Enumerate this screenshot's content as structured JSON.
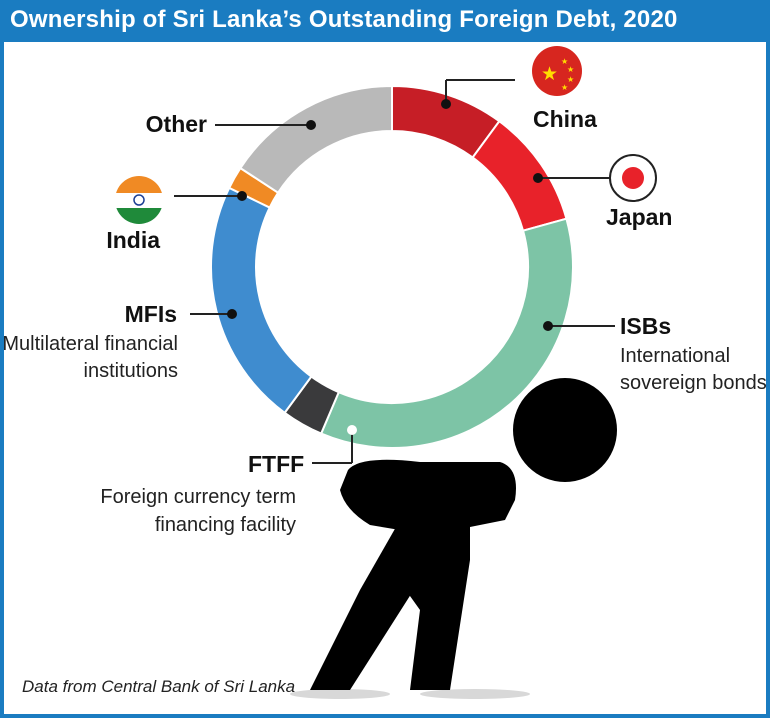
{
  "title": "Ownership of Sri Lanka’s Outstanding Foreign Debt, 2020",
  "source": "Data from Central Bank of Sri Lanka",
  "chart_data": {
    "type": "pie",
    "donut": true,
    "slices": [
      {
        "key": "china",
        "label": "China",
        "sublabel": [],
        "value": 10.1,
        "color": "#c61e26"
      },
      {
        "key": "japan",
        "label": "Japan",
        "sublabel": [],
        "value": 10.6,
        "color": "#e8222a"
      },
      {
        "key": "isbs",
        "label": "ISBs",
        "sublabel": [
          "International",
          "sovereign bonds"
        ],
        "value": 35.7,
        "color": "#7dc4a6"
      },
      {
        "key": "ftff",
        "label": "FTFF",
        "sublabel": [
          "Foreign currency term",
          "financing facility"
        ],
        "value": 3.7,
        "color": "#3a3a3c"
      },
      {
        "key": "mfis",
        "label": "MFIs",
        "sublabel": [
          "Multilateral financial",
          "institutions"
        ],
        "value": 22.1,
        "color": "#3f8ccf"
      },
      {
        "key": "india",
        "label": "India",
        "sublabel": [],
        "value": 2.0,
        "color": "#f08a24"
      },
      {
        "key": "other",
        "label": "Other",
        "sublabel": [],
        "value": 15.8,
        "color": "#b9b9b9"
      }
    ],
    "icons": [
      "china-flag",
      "japan-flag",
      "india-flag",
      "person-carrying-load"
    ]
  }
}
